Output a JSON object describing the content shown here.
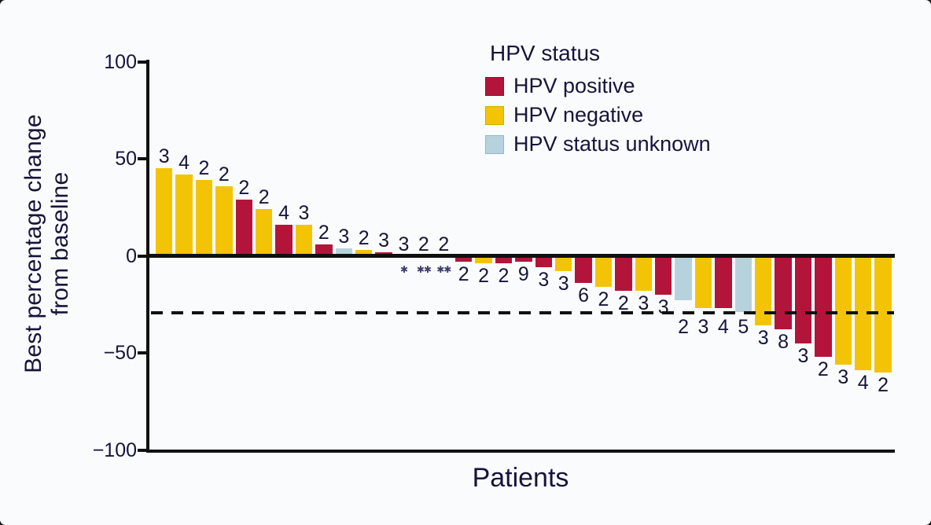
{
  "figure": {
    "background": "#fafbfd",
    "text_color": "#15153a",
    "axis_color": "#101010"
  },
  "y_axis": {
    "title_line1": "Best percentage change",
    "title_line2": "from baseline",
    "ticks": [
      {
        "label": "100",
        "value": 100
      },
      {
        "label": "50",
        "value": 50
      },
      {
        "label": "0",
        "value": 0
      },
      {
        "label": "−50",
        "value": -50
      },
      {
        "label": "−100",
        "value": -100
      }
    ]
  },
  "x_axis": {
    "title": "Patients"
  },
  "legend": {
    "title": "HPV status",
    "items": [
      {
        "label": "HPV positive",
        "key": "positive",
        "color": "#b3143a",
        "border": "#901028"
      },
      {
        "label": "HPV negative",
        "key": "negative",
        "color": "#f3c405",
        "border": "#d8a900"
      },
      {
        "label": "HPV status unknown",
        "key": "unknown",
        "color": "#b6d3dd",
        "border": "#94b8c4"
      }
    ]
  },
  "chart_data": {
    "type": "bar",
    "title": "",
    "xlabel": "Patients",
    "ylabel": "Best percentage change from baseline",
    "ylim": [
      -100,
      100
    ],
    "yticks": [
      100,
      50,
      0,
      -50,
      -100
    ],
    "grid": false,
    "legend_position": "top-center",
    "reference_line": {
      "y": -30,
      "style": "dashed",
      "color": "#111111"
    },
    "group_colors": {
      "positive": "#b3143a",
      "negative": "#f3c405",
      "unknown": "#b6d3dd"
    },
    "footnote_symbol": "✱",
    "bars": [
      {
        "value": 45,
        "hpv": "negative",
        "label": "3",
        "note": ""
      },
      {
        "value": 42,
        "hpv": "negative",
        "label": "4",
        "note": ""
      },
      {
        "value": 39,
        "hpv": "negative",
        "label": "2",
        "note": ""
      },
      {
        "value": 36,
        "hpv": "negative",
        "label": "2",
        "note": ""
      },
      {
        "value": 29,
        "hpv": "positive",
        "label": "2",
        "note": ""
      },
      {
        "value": 24,
        "hpv": "negative",
        "label": "2",
        "note": ""
      },
      {
        "value": 16,
        "hpv": "positive",
        "label": "4",
        "note": ""
      },
      {
        "value": 16,
        "hpv": "negative",
        "label": "3",
        "note": ""
      },
      {
        "value": 6,
        "hpv": "positive",
        "label": "2",
        "note": ""
      },
      {
        "value": 4,
        "hpv": "unknown",
        "label": "3",
        "note": ""
      },
      {
        "value": 3,
        "hpv": "negative",
        "label": "2",
        "note": ""
      },
      {
        "value": 2,
        "hpv": "positive",
        "label": "3",
        "note": ""
      },
      {
        "value": 0,
        "hpv": "",
        "label": "3",
        "note": "✱"
      },
      {
        "value": 0,
        "hpv": "",
        "label": "2",
        "note": "✱✱"
      },
      {
        "value": 0,
        "hpv": "",
        "label": "2",
        "note": "✱✱"
      },
      {
        "value": -3,
        "hpv": "positive",
        "label": "2",
        "note": ""
      },
      {
        "value": -4,
        "hpv": "negative",
        "label": "2",
        "note": ""
      },
      {
        "value": -4,
        "hpv": "positive",
        "label": "2",
        "note": ""
      },
      {
        "value": -3,
        "hpv": "positive",
        "label": "9",
        "note": ""
      },
      {
        "value": -6,
        "hpv": "positive",
        "label": "3",
        "note": ""
      },
      {
        "value": -8,
        "hpv": "negative",
        "label": "3",
        "note": ""
      },
      {
        "value": -14,
        "hpv": "positive",
        "label": "6",
        "note": ""
      },
      {
        "value": -16,
        "hpv": "negative",
        "label": "2",
        "note": ""
      },
      {
        "value": -18,
        "hpv": "positive",
        "label": "2",
        "note": ""
      },
      {
        "value": -18,
        "hpv": "negative",
        "label": "3",
        "note": ""
      },
      {
        "value": -20,
        "hpv": "positive",
        "label": "3",
        "note": ""
      },
      {
        "value": -23,
        "hpv": "unknown",
        "label": "2",
        "note": ""
      },
      {
        "value": -27,
        "hpv": "negative",
        "label": "3",
        "note": ""
      },
      {
        "value": -27,
        "hpv": "positive",
        "label": "4",
        "note": ""
      },
      {
        "value": -29,
        "hpv": "unknown",
        "label": "5",
        "note": ""
      },
      {
        "value": -36,
        "hpv": "negative",
        "label": "3",
        "note": ""
      },
      {
        "value": -38,
        "hpv": "positive",
        "label": "8",
        "note": ""
      },
      {
        "value": -45,
        "hpv": "positive",
        "label": "3",
        "note": ""
      },
      {
        "value": -52,
        "hpv": "positive",
        "label": "2",
        "note": ""
      },
      {
        "value": -56,
        "hpv": "negative",
        "label": "3",
        "note": ""
      },
      {
        "value": -59,
        "hpv": "negative",
        "label": "4",
        "note": ""
      },
      {
        "value": -60,
        "hpv": "negative",
        "label": "2",
        "note": ""
      }
    ]
  }
}
